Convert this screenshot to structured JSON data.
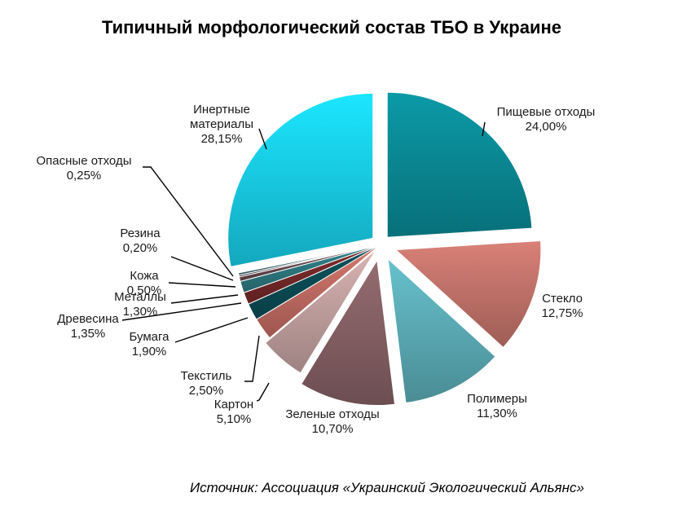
{
  "chart_data": {
    "type": "pie",
    "title": "Типичный морфологический состав ТБО в Украине",
    "source": "Источник: Ассоциация «Украинский Экологический Альянс»",
    "slices": [
      {
        "name": "Пищевые отходы",
        "value": 24.0,
        "label": "24,00%",
        "color": "#0a8f9b"
      },
      {
        "name": "Стекло",
        "value": 12.75,
        "label": "12,75%",
        "color": "#c9776e"
      },
      {
        "name": "Полимеры",
        "value": 11.3,
        "label": "11,30%",
        "color": "#5fb3be"
      },
      {
        "name": "Зеленые отходы",
        "value": 10.7,
        "label": "10,70%",
        "color": "#8a6468"
      },
      {
        "name": "Картон",
        "value": 5.1,
        "label": "5,10%",
        "color": "#c9a7a6"
      },
      {
        "name": "Текстиль",
        "value": 2.5,
        "label": "2,50%",
        "color": "#c86f66"
      },
      {
        "name": "Бумага",
        "value": 1.9,
        "label": "1,90%",
        "color": "#0c4f58"
      },
      {
        "name": "Древесина",
        "value": 1.35,
        "label": "1,35%",
        "color": "#7a2a2a"
      },
      {
        "name": "Металлы",
        "value": 1.3,
        "label": "1,30%",
        "color": "#2f7d85"
      },
      {
        "name": "Кожа",
        "value": 0.5,
        "label": "0,50%",
        "color": "#6b4c52"
      },
      {
        "name": "Резина",
        "value": 0.2,
        "label": "0,20%",
        "color": "#4c3a40"
      },
      {
        "name": "Опасные отходы",
        "value": 0.25,
        "label": "0,25%",
        "color": "#3a6e74"
      },
      {
        "name": "Инертные материалы",
        "value": 28.15,
        "label": "28,15%",
        "color": "#19d6f2"
      }
    ],
    "legend": "none"
  }
}
